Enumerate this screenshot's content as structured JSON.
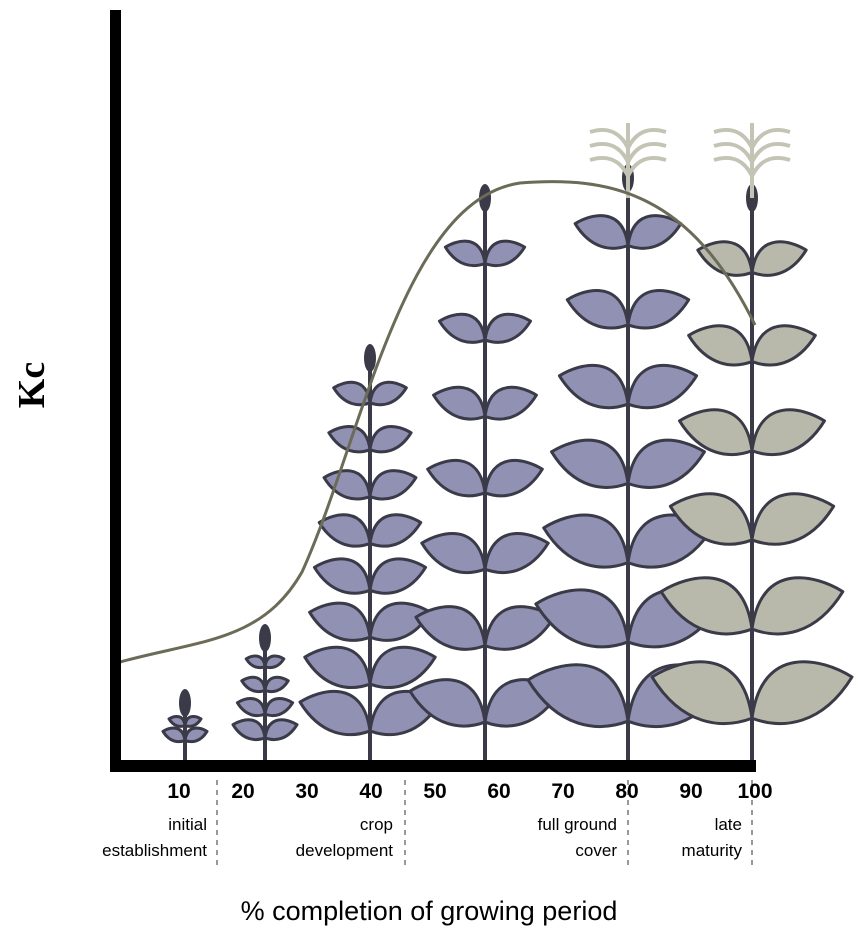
{
  "y_axis_label": "Kc",
  "x_axis_label": "% completion of growing period",
  "x_ticks": [
    10,
    20,
    30,
    40,
    50,
    60,
    70,
    80,
    90,
    100
  ],
  "stages": [
    {
      "lines": [
        "initial",
        "establishment"
      ]
    },
    {
      "lines": [
        "crop",
        "development"
      ]
    },
    {
      "lines": [
        "full ground",
        "cover"
      ]
    },
    {
      "lines": [
        "late",
        "maturity"
      ]
    }
  ]
}
